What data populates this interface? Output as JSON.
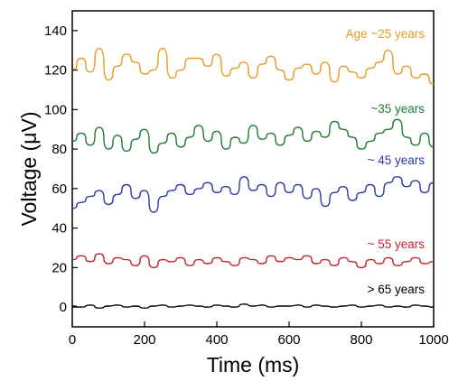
{
  "chart_data": {
    "type": "line",
    "xlabel": "Time (ms)",
    "ylabel": "Voltage (μV)",
    "xlim": [
      0,
      1000
    ],
    "ylim": [
      -10,
      150
    ],
    "xticks": [
      0,
      200,
      400,
      600,
      800,
      1000
    ],
    "yticks": [
      0,
      20,
      40,
      60,
      80,
      100,
      120,
      140
    ],
    "grid": false,
    "series": [
      {
        "name": "Age ~25 years",
        "color": "#e69a28",
        "x": [
          0,
          25,
          50,
          75,
          100,
          125,
          150,
          175,
          200,
          225,
          250,
          275,
          300,
          325,
          350,
          375,
          400,
          425,
          450,
          475,
          500,
          525,
          550,
          575,
          600,
          625,
          650,
          675,
          700,
          725,
          750,
          775,
          800,
          825,
          850,
          875,
          900,
          925,
          950,
          975,
          1000
        ],
        "y": [
          120,
          126,
          119,
          131,
          115,
          122,
          128,
          124,
          118,
          120,
          131,
          116,
          120,
          126,
          126,
          122,
          128,
          117,
          121,
          124,
          116,
          123,
          127,
          120,
          115,
          121,
          123,
          118,
          124,
          114,
          122,
          119,
          116,
          121,
          124,
          130,
          118,
          122,
          116,
          118,
          113
        ]
      },
      {
        "name": "~35 years",
        "color": "#1e7b32",
        "x": [
          0,
          25,
          50,
          75,
          100,
          125,
          150,
          175,
          200,
          225,
          250,
          275,
          300,
          325,
          350,
          375,
          400,
          425,
          450,
          475,
          500,
          525,
          550,
          575,
          600,
          625,
          650,
          675,
          700,
          725,
          750,
          775,
          800,
          825,
          850,
          875,
          900,
          925,
          950,
          975,
          1000
        ],
        "y": [
          84,
          88,
          82,
          91,
          80,
          87,
          79,
          85,
          90,
          78,
          83,
          88,
          81,
          86,
          92,
          84,
          89,
          80,
          86,
          83,
          92,
          85,
          88,
          82,
          87,
          91,
          84,
          89,
          86,
          94,
          90,
          86,
          80,
          84,
          88,
          90,
          95,
          86,
          82,
          88,
          81
        ]
      },
      {
        "name": "~ 45 years",
        "color": "#2b3a9e",
        "x": [
          0,
          25,
          50,
          75,
          100,
          125,
          150,
          175,
          200,
          225,
          250,
          275,
          300,
          325,
          350,
          375,
          400,
          425,
          450,
          475,
          500,
          525,
          550,
          575,
          600,
          625,
          650,
          675,
          700,
          725,
          750,
          775,
          800,
          825,
          850,
          875,
          900,
          925,
          950,
          975,
          1000
        ],
        "y": [
          50,
          53,
          56,
          59,
          52,
          57,
          62,
          55,
          59,
          48,
          56,
          59,
          62,
          57,
          60,
          63,
          58,
          61,
          57,
          66,
          59,
          62,
          56,
          63,
          58,
          62,
          55,
          60,
          51,
          58,
          61,
          54,
          58,
          62,
          56,
          63,
          66,
          61,
          64,
          58,
          63
        ]
      },
      {
        "name": "~ 55 years",
        "color": "#c8202c",
        "x": [
          0,
          25,
          50,
          75,
          100,
          125,
          150,
          175,
          200,
          225,
          250,
          275,
          300,
          325,
          350,
          375,
          400,
          425,
          450,
          475,
          500,
          525,
          550,
          575,
          600,
          625,
          650,
          675,
          700,
          725,
          750,
          775,
          800,
          825,
          850,
          875,
          900,
          925,
          950,
          975,
          1000
        ],
        "y": [
          24,
          26,
          23,
          27,
          22,
          25,
          24,
          21,
          26,
          20,
          24,
          23,
          25,
          21,
          24,
          22,
          25,
          23,
          21,
          25,
          24,
          22,
          26,
          23,
          25,
          24,
          26,
          22,
          24,
          21,
          25,
          23,
          20,
          24,
          22,
          25,
          21,
          23,
          25,
          22,
          23
        ]
      },
      {
        "name": "> 65 years",
        "color": "#000000",
        "x": [
          0,
          25,
          50,
          75,
          100,
          125,
          150,
          175,
          200,
          225,
          250,
          275,
          300,
          325,
          350,
          375,
          400,
          425,
          450,
          475,
          500,
          525,
          550,
          575,
          600,
          625,
          650,
          675,
          700,
          725,
          750,
          775,
          800,
          825,
          850,
          875,
          900,
          925,
          950,
          975,
          1000
        ],
        "y": [
          0.5,
          0,
          1,
          -0.5,
          0.5,
          1,
          0,
          0.5,
          -0.5,
          0.5,
          1,
          0,
          0.5,
          1,
          0.5,
          0,
          1,
          0.5,
          0,
          1.5,
          0.5,
          1,
          0,
          0.5,
          0.5,
          1,
          0,
          1,
          0.5,
          0,
          0.5,
          1,
          0,
          0.5,
          1,
          0,
          0.5,
          0,
          1,
          0.5,
          0
        ]
      }
    ]
  }
}
